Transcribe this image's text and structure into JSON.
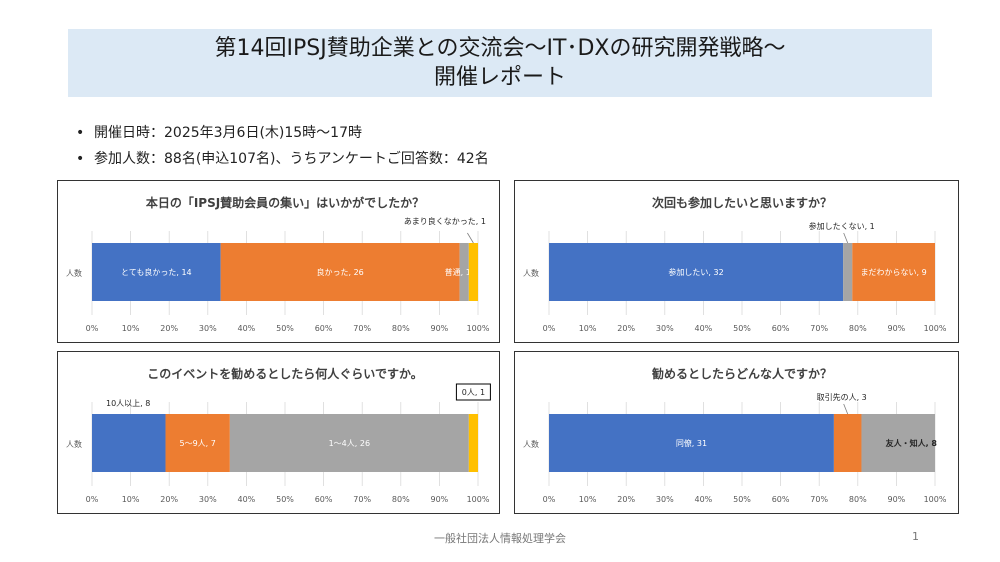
{
  "slide": {
    "title_line1": "第14回IPSJ賛助企業との交流会～IT･DXの研究開発戦略～",
    "title_line2": "開催レポート",
    "bullets": [
      "開催日時：2025年3月6日(木)15時～17時",
      "参加人数：88名(申込107名)、うちアンケートご回答数：42名"
    ],
    "footer": "一般社団法人情報処理学会",
    "page_number": "1"
  },
  "axis_ticks": [
    "0%",
    "10%",
    "20%",
    "30%",
    "40%",
    "50%",
    "60%",
    "70%",
    "80%",
    "90%",
    "100%"
  ],
  "chart_data": [
    {
      "type": "bar",
      "stacked": "100%",
      "orientation": "horizontal",
      "title": "本日の「IPSJ賛助会員の集い」はいかがでしたか？",
      "category": "人数",
      "series": [
        {
          "name": "とても良かった",
          "value": 14,
          "label": "とても良かった, 14",
          "color": "#4472c4"
        },
        {
          "name": "良かった",
          "value": 26,
          "label": "良かった, 26",
          "color": "#ed7d31"
        },
        {
          "name": "普通",
          "value": 1,
          "label": "普通, 1",
          "color": "#a5a5a5"
        },
        {
          "name": "あまり良くなかった",
          "value": 1,
          "label": "あまり良くなかった, 1",
          "color": "#ffc000"
        }
      ]
    },
    {
      "type": "bar",
      "stacked": "100%",
      "orientation": "horizontal",
      "title": "次回も参加したいと思いますか？",
      "category": "人数",
      "series": [
        {
          "name": "参加したい",
          "value": 32,
          "label": "参加したい, 32",
          "color": "#4472c4"
        },
        {
          "name": "参加したくない",
          "value": 1,
          "label": "参加したくない, 1",
          "color": "#a5a5a5"
        },
        {
          "name": "まだわからない",
          "value": 9,
          "label": "まだわからない, 9",
          "color": "#ed7d31"
        }
      ]
    },
    {
      "type": "bar",
      "stacked": "100%",
      "orientation": "horizontal",
      "title": "このイベントを勧めるとしたら何人ぐらいですか。",
      "category": "人数",
      "series": [
        {
          "name": "10人以上",
          "value": 8,
          "label": "10人以上, 8",
          "color": "#4472c4"
        },
        {
          "name": "5～9人",
          "value": 7,
          "label": "5～9人, 7",
          "color": "#ed7d31"
        },
        {
          "name": "1～4人",
          "value": 26,
          "label": "1～4人, 26",
          "color": "#a5a5a5"
        },
        {
          "name": "0人",
          "value": 1,
          "label": "0人, 1",
          "color": "#ffc000"
        }
      ]
    },
    {
      "type": "bar",
      "stacked": "100%",
      "orientation": "horizontal",
      "title": "勧めるとしたらどんな人ですか？",
      "category": "人数",
      "series": [
        {
          "name": "同僚",
          "value": 31,
          "label": "同僚, 31",
          "color": "#4472c4"
        },
        {
          "name": "取引先の人",
          "value": 3,
          "label": "取引先の人, 3",
          "color": "#ed7d31"
        },
        {
          "name": "友人・知人",
          "value": 8,
          "label": "友人・知人, 8",
          "color": "#a5a5a5"
        }
      ]
    }
  ]
}
